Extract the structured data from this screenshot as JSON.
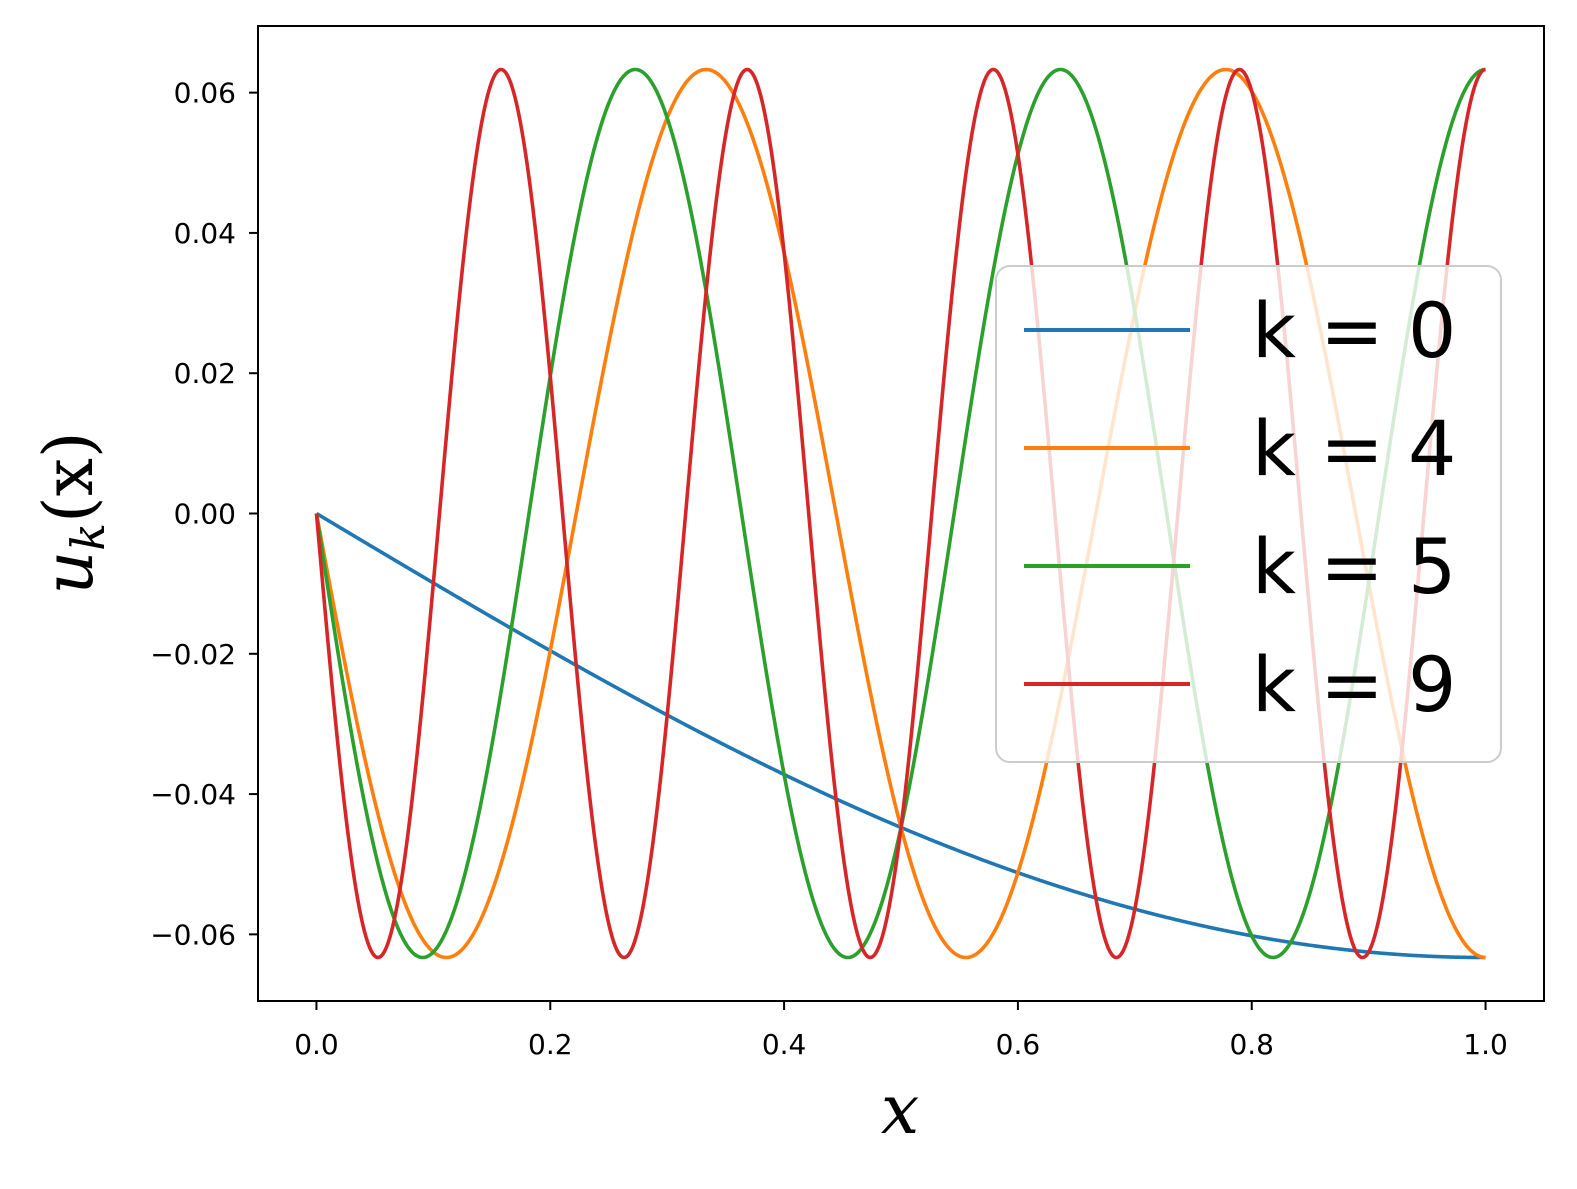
{
  "chart_data": {
    "type": "line",
    "title": "",
    "xlabel": "x",
    "ylabel": "u_k(x)",
    "ylabel_main": "u",
    "ylabel_sub": "k",
    "ylabel_arg": "(x)",
    "xlim": [
      -0.05,
      1.05
    ],
    "ylim": [
      -0.0695,
      0.0695
    ],
    "x_ticks": [
      0.0,
      0.2,
      0.4,
      0.6,
      0.8,
      1.0
    ],
    "x_tick_labels": [
      "0.0",
      "0.2",
      "0.4",
      "0.6",
      "0.8",
      "1.0"
    ],
    "y_ticks": [
      0.06,
      0.04,
      0.02,
      0.0,
      -0.02,
      -0.04,
      -0.06
    ],
    "y_tick_labels": [
      "0.06",
      "0.04",
      "0.02",
      "0.00",
      "−0.02",
      "−0.04",
      "−0.06"
    ],
    "grid": false,
    "legend_position": "center-right",
    "amplitude": 0.0633,
    "series": [
      {
        "name": "k = 0",
        "k": 0,
        "color": "#1f77b4"
      },
      {
        "name": "k = 4",
        "k": 4,
        "color": "#ff7f0e"
      },
      {
        "name": "k = 5",
        "k": 5,
        "color": "#2ca02c"
      },
      {
        "name": "k = 9",
        "k": 9,
        "color": "#d62728"
      }
    ]
  }
}
